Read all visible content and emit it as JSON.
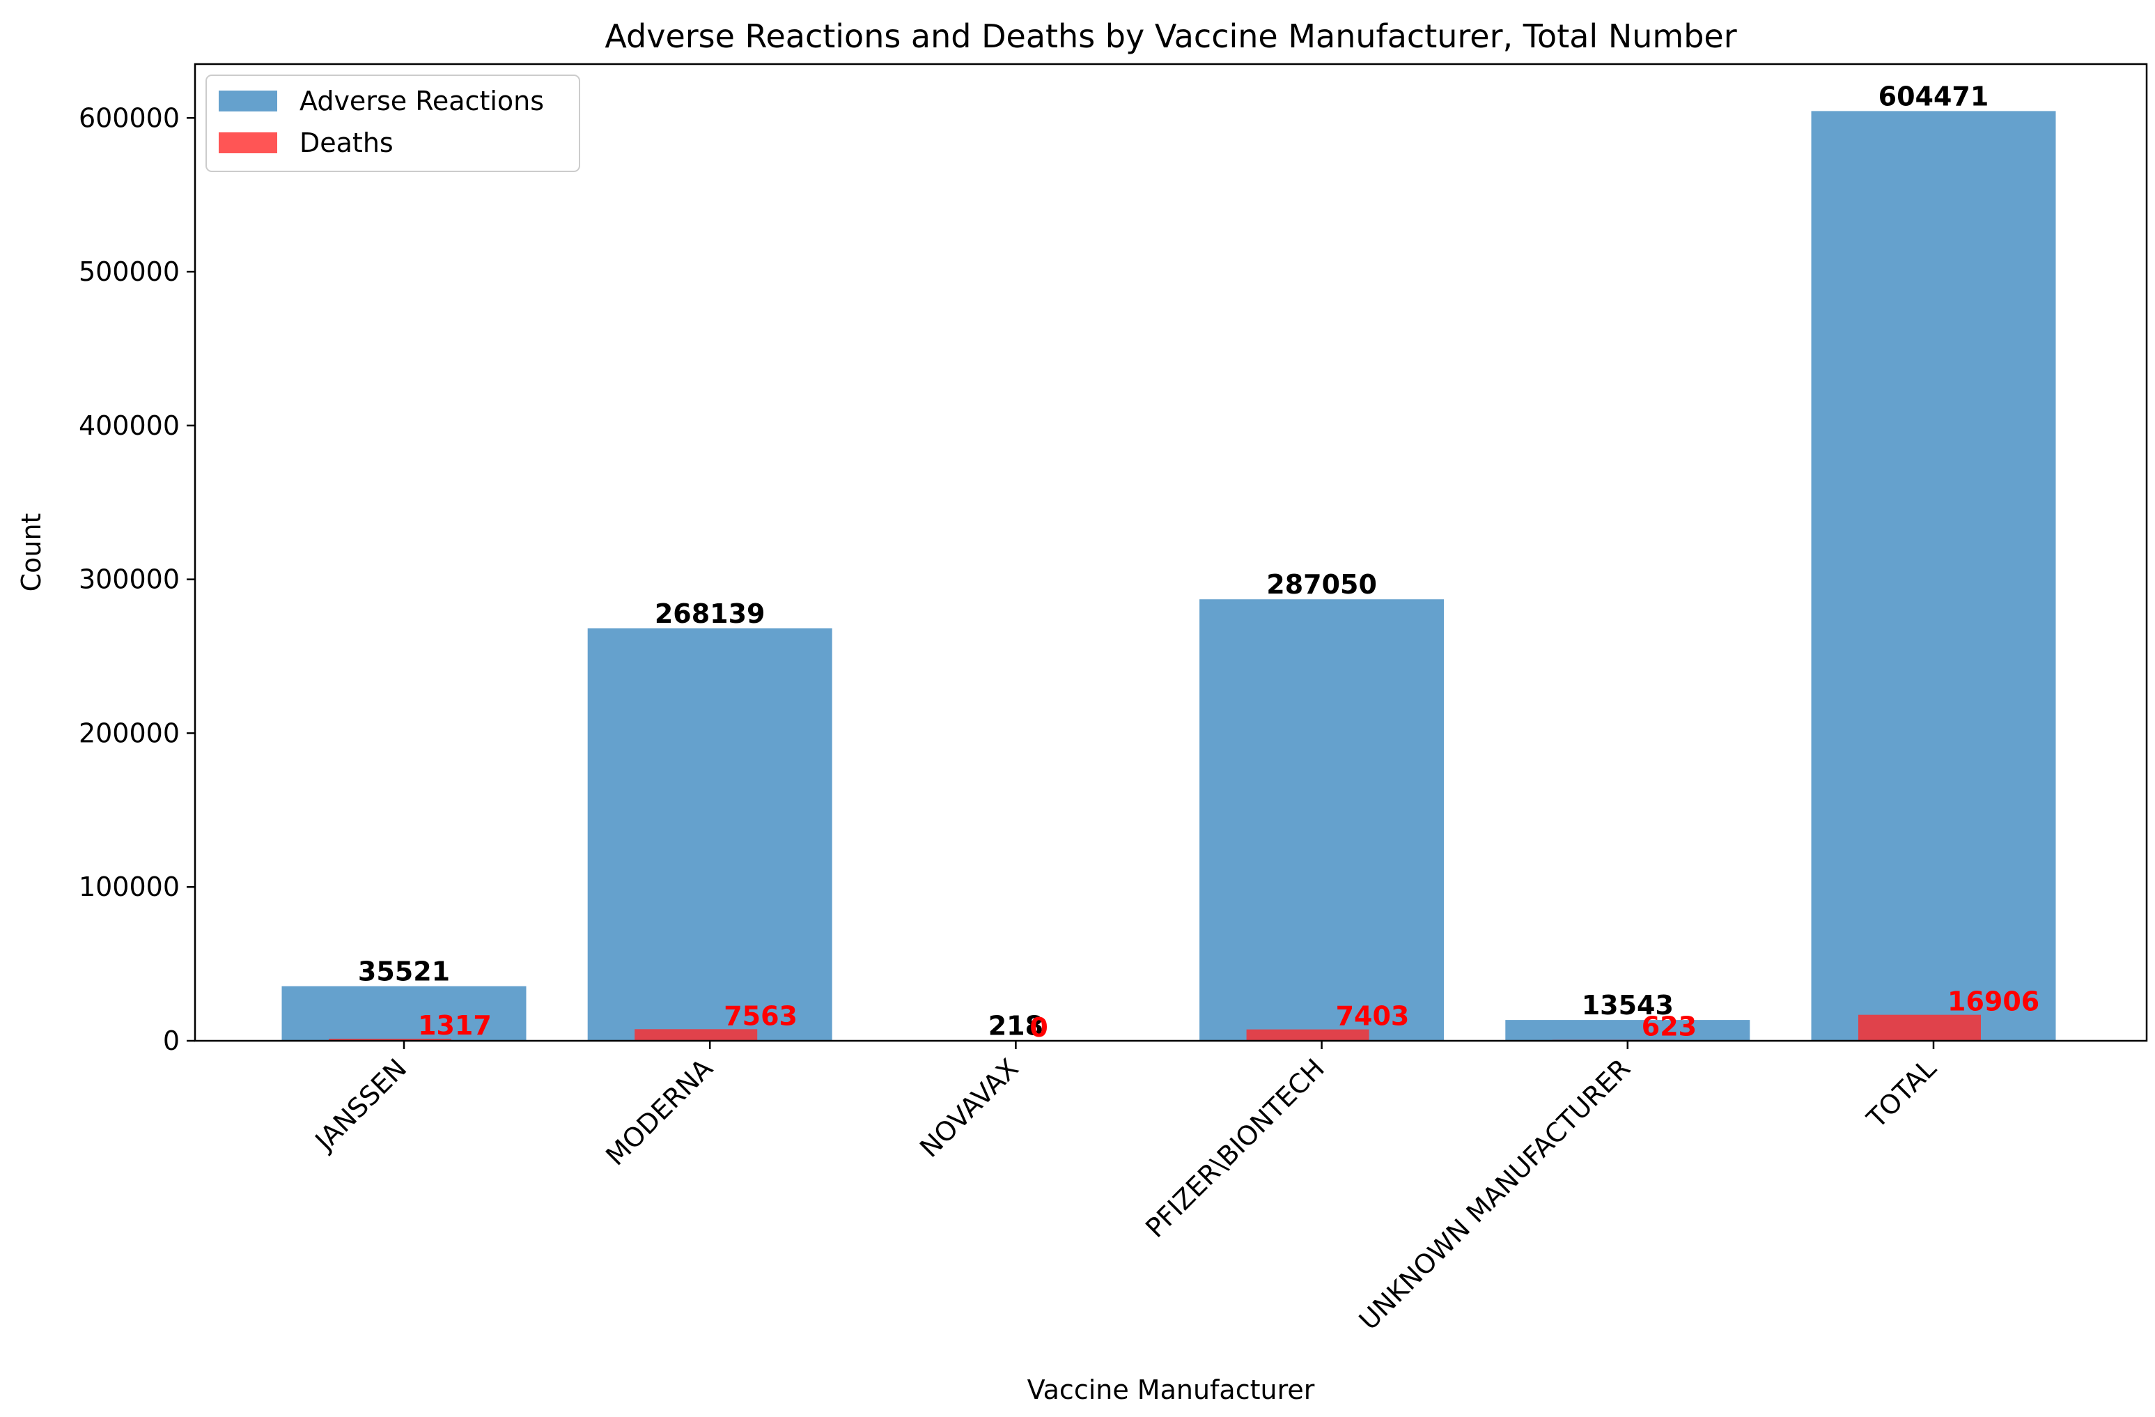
{
  "chart_data": {
    "type": "bar",
    "title": "Adverse Reactions and Deaths by Vaccine Manufacturer, Total Number",
    "xlabel": "Vaccine Manufacturer",
    "ylabel": "Count",
    "ylim": [
      0,
      635000
    ],
    "yticks": [
      0,
      100000,
      200000,
      300000,
      400000,
      500000,
      600000
    ],
    "categories": [
      "JANSSEN",
      "MODERNA",
      "NOVAVAX",
      "PFIZER\\BIONTECH",
      "UNKNOWN MANUFACTURER",
      "TOTAL"
    ],
    "series": [
      {
        "name": "Adverse Reactions",
        "values": [
          35521,
          268139,
          218,
          287050,
          13543,
          604471
        ],
        "color": "#4a90c4",
        "opacity": 0.85,
        "label_color": "#000000"
      },
      {
        "name": "Deaths",
        "values": [
          1317,
          7563,
          0,
          7403,
          623,
          16906
        ],
        "color": "#ff2a2a",
        "opacity": 0.8,
        "label_color": "#ff0000"
      }
    ],
    "legend_position": "top-left",
    "grid": false
  }
}
